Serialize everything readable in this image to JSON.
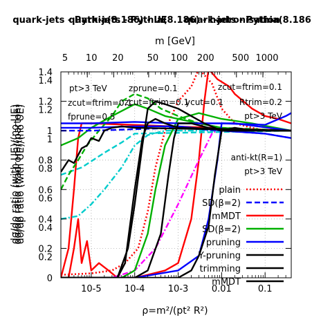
{
  "chart_data": {
    "type": "line",
    "titles": [
      "quark-jets - Pythia(8.186) - UE",
      "quark-jets - Pythia(8.186) - hadronisation",
      "quark-jets - Pythia(8.186) - UE"
    ],
    "xlabel": "ρ=m²/(pt² R²)",
    "xlabel_top": "m [GeV]",
    "ylabels": [
      "dσ/dρ ratio (with UE)/(no UE)",
      "dσ/dρ ratio (hadron)/(parton)",
      "dσ/dρ ratio (with UE)/(no UE)"
    ],
    "x_scale": "log",
    "xlim": [
      2e-06,
      0.4
    ],
    "ylim": [
      0,
      1.4
    ],
    "grid": true,
    "x_ticks": [
      {
        "v": 1e-05,
        "label": "10-5"
      },
      {
        "v": 0.0001,
        "label": "10-4"
      },
      {
        "v": 0.001,
        "label": "10-3"
      },
      {
        "v": 0.01,
        "label": "0.01"
      },
      {
        "v": 0.1,
        "label": "0.1"
      }
    ],
    "x_ticks_top": [
      {
        "m": 5,
        "label": "5"
      },
      {
        "m": 10,
        "label": "10"
      },
      {
        "m": 20,
        "label": "20"
      },
      {
        "m": 50,
        "label": "50"
      },
      {
        "m": 100,
        "label": "100"
      },
      {
        "m": 200,
        "label": "200"
      },
      {
        "m": 500,
        "label": "500"
      },
      {
        "m": 1000,
        "label": "1000"
      }
    ],
    "y_ticks": [
      0,
      0.2,
      0.4,
      0.6,
      0.8,
      1,
      1.2,
      1.4
    ],
    "y_ticks_labels": [
      "0",
      "0.2",
      "0.4",
      "0.6",
      "0.8",
      "1",
      "1.2",
      "1.4"
    ],
    "y_ticks_alt": [
      0.2,
      0.4,
      0.6,
      0.8,
      1,
      1.2,
      1.4
    ],
    "y_ticks_alt_labels": [
      "0.2",
      "0.4",
      "0.6",
      "0.8",
      "1",
      "1.2",
      "1.4"
    ],
    "annotations": {
      "left": [
        "pt>3 TeV",
        "zcut=ftrim=0.1",
        "fprune=0.5"
      ],
      "center": [
        "zprune=0.1",
        "zcut=ftrim=0.1",
        "ycut=0.1"
      ],
      "right": [
        "zcut=ftrim=0.1",
        "Rtrim=0.2",
        "pt>3 TeV"
      ],
      "algo": [
        "anti-kt(R=1)",
        "pt>3 TeV"
      ]
    },
    "legend_position": "bottom-right",
    "legend": [
      {
        "label": "plain",
        "color": "#ff0000",
        "dash": "dot"
      },
      {
        "label": "SD(β=2)",
        "color": "#0000ff",
        "dash": "dash"
      },
      {
        "label": "mMDT",
        "color": "#ff0000",
        "dash": "solid"
      },
      {
        "label": "SD(β=2)",
        "color": "#00b000",
        "dash": "solid"
      },
      {
        "label": "pruning",
        "color": "#0000ff",
        "dash": "solid"
      },
      {
        "label": "Y-pruning",
        "color": "#000000",
        "dash": "solid"
      },
      {
        "label": "trimming",
        "color": "#000000",
        "dash": "solid"
      },
      {
        "label": "mMDT",
        "color": "#000000",
        "dash": "solid"
      }
    ],
    "series": [
      {
        "color": "#ff0000",
        "dash": "dot",
        "points": [
          [
            2e-06,
            0.02
          ],
          [
            1e-05,
            0.03
          ],
          [
            3e-05,
            0.05
          ],
          [
            6e-05,
            0.1
          ],
          [
            0.00012,
            0.2
          ],
          [
            0.0002,
            0.45
          ],
          [
            0.0003,
            0.75
          ],
          [
            0.0005,
            1.0
          ],
          [
            0.001,
            1.2
          ],
          [
            0.002,
            1.3
          ],
          [
            0.003,
            1.42
          ],
          [
            0.006,
            1.32
          ],
          [
            0.01,
            1.15
          ],
          [
            0.02,
            1.05
          ],
          [
            0.05,
            1.02
          ],
          [
            0.1,
            1.0
          ],
          [
            0.4,
            1.0
          ]
        ]
      },
      {
        "color": "#ff0000",
        "dash": "solid",
        "points": [
          [
            2e-06,
            0.0
          ],
          [
            3e-06,
            0.2
          ],
          [
            4e-06,
            0.6
          ],
          [
            5e-06,
            0.95
          ],
          [
            6e-06,
            1.05
          ],
          [
            1e-05,
            1.05
          ],
          [
            0.4,
            1.0
          ]
        ]
      },
      {
        "color": "#ff0000",
        "dash": "solid",
        "points": [
          [
            2e-06,
            0.0
          ],
          [
            0.0001,
            0.0
          ],
          [
            0.0002,
            0.02
          ],
          [
            0.0005,
            0.05
          ],
          [
            0.001,
            0.1
          ],
          [
            0.002,
            0.4
          ],
          [
            0.003,
            0.8
          ],
          [
            0.004,
            1.2
          ],
          [
            0.005,
            1.42
          ],
          [
            0.008,
            1.35
          ],
          [
            0.015,
            1.3
          ],
          [
            0.02,
            1.25
          ],
          [
            0.05,
            1.15
          ],
          [
            0.1,
            1.1
          ],
          [
            0.2,
            1.08
          ],
          [
            0.4,
            1.05
          ]
        ]
      },
      {
        "color": "#ff0000",
        "dash": "solid",
        "points": [
          [
            3e-06,
            0.0
          ],
          [
            4e-06,
            0.2
          ],
          [
            5e-06,
            0.4
          ],
          [
            6e-06,
            0.1
          ],
          [
            8e-06,
            0.25
          ],
          [
            1e-05,
            0.05
          ],
          [
            1.5e-05,
            0.1
          ],
          [
            2.5e-05,
            0.05
          ],
          [
            4e-05,
            0.0
          ]
        ]
      },
      {
        "color": "#ff00ff",
        "dash": "dashdot",
        "points": [
          [
            3e-05,
            0.0
          ],
          [
            0.0001,
            0.05
          ],
          [
            0.0003,
            0.2
          ],
          [
            0.001,
            0.5
          ],
          [
            0.003,
            0.8
          ],
          [
            0.006,
            0.98
          ],
          [
            0.01,
            1.02
          ],
          [
            0.05,
            1.0
          ],
          [
            0.4,
            1.0
          ]
        ]
      },
      {
        "color": "#00cccc",
        "dash": "dashdot",
        "points": [
          [
            2e-06,
            0.4
          ],
          [
            5e-06,
            0.42
          ],
          [
            1e-05,
            0.5
          ],
          [
            2e-05,
            0.6
          ],
          [
            5e-05,
            0.75
          ],
          [
            0.0001,
            0.9
          ],
          [
            0.0002,
            0.97
          ],
          [
            0.0005,
            1.0
          ],
          [
            0.4,
            1.0
          ]
        ]
      },
      {
        "color": "#00cccc",
        "dash": "dash",
        "points": [
          [
            2e-06,
            0.7
          ],
          [
            6e-06,
            0.75
          ],
          [
            2e-05,
            0.85
          ],
          [
            5e-05,
            0.92
          ],
          [
            0.0001,
            0.98
          ],
          [
            0.4,
            1.0
          ]
        ]
      },
      {
        "color": "#00b000",
        "dash": "dash",
        "points": [
          [
            2e-06,
            0.6
          ],
          [
            3e-06,
            0.7
          ],
          [
            5e-06,
            0.8
          ],
          [
            8e-06,
            0.9
          ],
          [
            1.5e-05,
            1.0
          ],
          [
            3e-05,
            1.1
          ],
          [
            5e-05,
            1.2
          ],
          [
            0.0001,
            1.25
          ],
          [
            0.0002,
            1.22
          ],
          [
            0.0004,
            1.15
          ],
          [
            0.001,
            1.1
          ],
          [
            0.003,
            1.05
          ],
          [
            0.01,
            1.02
          ],
          [
            0.4,
            1.0
          ]
        ]
      },
      {
        "color": "#00b000",
        "dash": "solid",
        "points": [
          [
            2e-06,
            0.9
          ],
          [
            5e-06,
            0.95
          ],
          [
            1e-05,
            1.02
          ],
          [
            3e-05,
            1.1
          ],
          [
            0.0001,
            1.18
          ],
          [
            0.0002,
            1.15
          ],
          [
            0.0005,
            1.1
          ],
          [
            0.001,
            1.08
          ],
          [
            0.003,
            1.05
          ],
          [
            0.01,
            1.02
          ],
          [
            0.1,
            1.0
          ],
          [
            0.4,
            1.0
          ]
        ]
      },
      {
        "color": "#00b000",
        "dash": "solid",
        "points": [
          [
            2e-06,
            0.0
          ],
          [
            5e-05,
            0.0
          ],
          [
            0.0001,
            0.05
          ],
          [
            0.0002,
            0.3
          ],
          [
            0.0003,
            0.6
          ],
          [
            0.0005,
            0.9
          ],
          [
            0.001,
            1.08
          ],
          [
            0.003,
            1.12
          ],
          [
            0.01,
            1.08
          ],
          [
            0.05,
            1.05
          ],
          [
            0.4,
            1.0
          ]
        ]
      },
      {
        "color": "#0000ff",
        "dash": "solid",
        "points": [
          [
            2e-06,
            1.05
          ],
          [
            1e-05,
            1.05
          ],
          [
            0.0001,
            1.06
          ],
          [
            0.001,
            1.05
          ],
          [
            0.01,
            1.05
          ],
          [
            0.1,
            1.04
          ],
          [
            0.3,
            1.1
          ],
          [
            0.4,
            1.12
          ]
        ]
      },
      {
        "color": "#0000ff",
        "dash": "solid",
        "points": [
          [
            2e-06,
            1.02
          ],
          [
            1e-05,
            1.02
          ],
          [
            0.0001,
            1.03
          ],
          [
            0.001,
            1.03
          ],
          [
            0.01,
            1.0
          ],
          [
            0.1,
            0.98
          ],
          [
            0.4,
            0.95
          ]
        ]
      },
      {
        "color": "#0000ff",
        "dash": "dash",
        "points": [
          [
            2e-06,
            1.0
          ],
          [
            1e-05,
            1.0
          ],
          [
            0.0001,
            1.01
          ],
          [
            0.001,
            1.02
          ],
          [
            0.01,
            1.0
          ],
          [
            0.1,
            0.98
          ],
          [
            0.4,
            0.95
          ]
        ]
      },
      {
        "color": "#0000ff",
        "dash": "solid",
        "points": [
          [
            2e-06,
            0.0
          ],
          [
            0.0001,
            0.0
          ],
          [
            0.001,
            0.05
          ],
          [
            0.003,
            0.15
          ],
          [
            0.005,
            0.4
          ],
          [
            0.008,
            0.8
          ],
          [
            0.01,
            1.05
          ],
          [
            0.02,
            1.05
          ],
          [
            0.4,
            1.0
          ]
        ]
      },
      {
        "color": "#000000",
        "dash": "solid",
        "points": [
          [
            2e-06,
            0.72
          ],
          [
            3e-06,
            0.8
          ],
          [
            4e-06,
            0.78
          ],
          [
            6e-06,
            0.88
          ],
          [
            8e-06,
            0.9
          ],
          [
            1e-05,
            0.95
          ],
          [
            1.5e-05,
            0.93
          ],
          [
            2e-05,
            1.0
          ],
          [
            3e-05,
            1.02
          ],
          [
            5e-05,
            1.03
          ],
          [
            0.0001,
            1.02
          ],
          [
            0.4,
            1.0
          ]
        ]
      },
      {
        "color": "#000000",
        "dash": "solid",
        "points": [
          [
            2e-06,
            0.0
          ],
          [
            4e-05,
            0.0
          ],
          [
            6e-05,
            0.1
          ],
          [
            0.0001,
            0.6
          ],
          [
            0.00015,
            0.95
          ],
          [
            0.0002,
            1.05
          ],
          [
            0.0003,
            1.08
          ],
          [
            0.0005,
            1.05
          ],
          [
            0.001,
            1.02
          ],
          [
            0.4,
            1.0
          ]
        ]
      },
      {
        "color": "#000000",
        "dash": "solid",
        "points": [
          [
            2e-06,
            0.0
          ],
          [
            4e-05,
            0.0
          ],
          [
            7e-05,
            0.2
          ],
          [
            0.0001,
            0.5
          ],
          [
            0.00015,
            0.9
          ],
          [
            0.0002,
            1.15
          ],
          [
            0.0003,
            1.2
          ],
          [
            0.0005,
            1.18
          ],
          [
            0.001,
            1.15
          ],
          [
            0.002,
            1.1
          ],
          [
            0.004,
            1.05
          ],
          [
            0.01,
            1.0
          ],
          [
            0.4,
            1.0
          ]
        ]
      },
      {
        "color": "#000000",
        "dash": "solid",
        "points": [
          [
            2e-06,
            0.0
          ],
          [
            0.0001,
            0.0
          ],
          [
            0.0002,
            0.05
          ],
          [
            0.0004,
            0.3
          ],
          [
            0.0006,
            0.7
          ],
          [
            0.0008,
            0.95
          ],
          [
            0.001,
            1.05
          ],
          [
            0.002,
            1.05
          ],
          [
            0.005,
            1.02
          ],
          [
            0.01,
            1.0
          ],
          [
            0.05,
            1.0
          ],
          [
            0.4,
            1.0
          ]
        ]
      },
      {
        "color": "#000000",
        "dash": "solid",
        "points": [
          [
            2e-06,
            0.0
          ],
          [
            0.001,
            0.0
          ],
          [
            0.002,
            0.05
          ],
          [
            0.003,
            0.15
          ],
          [
            0.005,
            0.35
          ],
          [
            0.007,
            0.7
          ],
          [
            0.01,
            1.0
          ],
          [
            0.02,
            1.02
          ],
          [
            0.05,
            1.0
          ],
          [
            0.4,
            1.0
          ]
        ]
      }
    ]
  }
}
